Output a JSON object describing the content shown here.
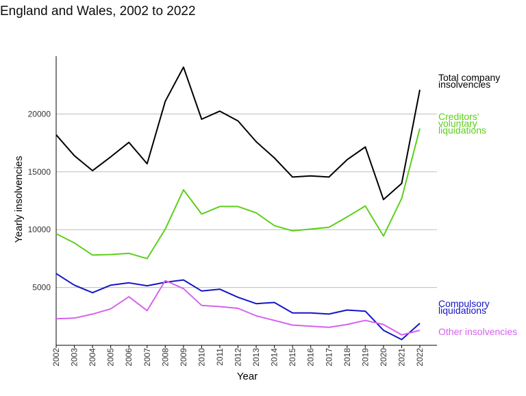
{
  "chart_data": {
    "type": "line",
    "subtitle": "England and Wales, 2002 to 2022",
    "xlabel": "Year",
    "ylabel": "Yearly insolvencies",
    "x": [
      "2002",
      "2003",
      "2004",
      "2005",
      "2006",
      "2007",
      "2008",
      "2009",
      "2010",
      "2011",
      "2012",
      "2013",
      "2014",
      "2015",
      "2016",
      "2017",
      "2018",
      "2019",
      "2020",
      "2021",
      "2022"
    ],
    "ylim": [
      0,
      25000
    ],
    "yticks": [
      5000,
      10000,
      15000,
      20000
    ],
    "grid": true,
    "legend": "direct labels at line ends (right)",
    "series": [
      {
        "name": "Total company insolvencies",
        "label_lines": [
          "Total company",
          "insolvencies"
        ],
        "color": "#000000",
        "values": [
          18200,
          16400,
          15100,
          16300,
          17550,
          15700,
          21100,
          24050,
          19550,
          20250,
          19400,
          17600,
          16200,
          14550,
          14650,
          14550,
          16050,
          17150,
          12600,
          14000,
          22100
        ]
      },
      {
        "name": "Creditors' voluntary liquidations",
        "label_lines": [
          "Creditors'",
          "voluntary",
          "liquidations"
        ],
        "color": "#5ccf1a",
        "values": [
          9650,
          8850,
          7800,
          7850,
          7950,
          7500,
          10050,
          13450,
          11350,
          12000,
          12000,
          11450,
          10350,
          9900,
          10050,
          10200,
          11100,
          12050,
          9450,
          12700,
          18750
        ]
      },
      {
        "name": "Compulsory liquidations",
        "label_lines": [
          "Compulsory",
          "liquidations"
        ],
        "color": "#1414c8",
        "values": [
          6200,
          5200,
          4550,
          5200,
          5400,
          5150,
          5450,
          5650,
          4700,
          4850,
          4150,
          3600,
          3700,
          2800,
          2800,
          2700,
          3050,
          2950,
          1300,
          500,
          1900
        ]
      },
      {
        "name": "Other insolvencies",
        "label_lines": [
          "Other insolvencies"
        ],
        "color": "#d561f0",
        "values": [
          2300,
          2350,
          2700,
          3150,
          4200,
          3000,
          5600,
          4900,
          3450,
          3350,
          3200,
          2550,
          2150,
          1750,
          1650,
          1550,
          1800,
          2150,
          1800,
          900,
          1300
        ]
      }
    ]
  }
}
